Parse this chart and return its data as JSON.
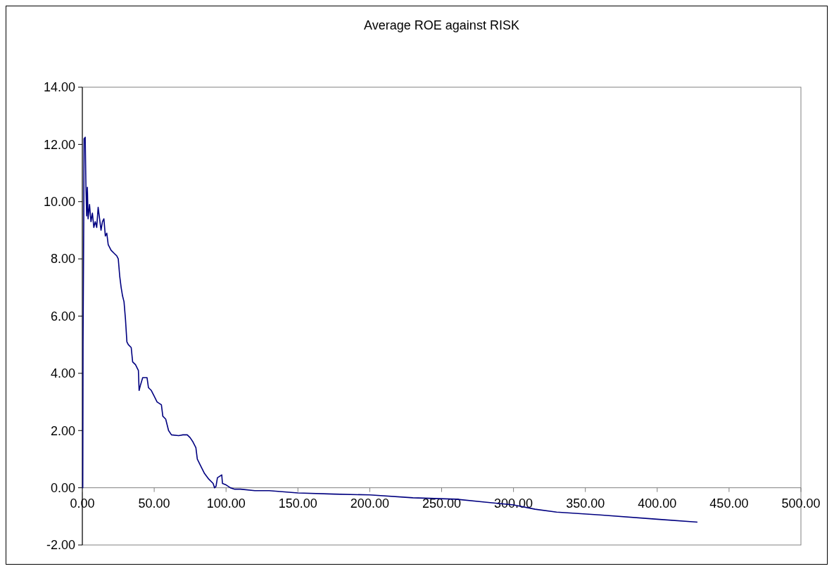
{
  "chart_data": {
    "type": "line",
    "title": "Average ROE against RISK",
    "xlim": [
      0,
      500
    ],
    "xticks": [
      {
        "value": 0,
        "label": "0.00"
      },
      {
        "value": 50,
        "label": "50.00"
      },
      {
        "value": 100,
        "label": "100.00"
      },
      {
        "value": 150,
        "label": "150.00"
      },
      {
        "value": 200,
        "label": "200.00"
      },
      {
        "value": 250,
        "label": "250.00"
      },
      {
        "value": 300,
        "label": "300.00"
      },
      {
        "value": 350,
        "label": "350.00"
      },
      {
        "value": 400,
        "label": "400.00"
      },
      {
        "value": 450,
        "label": "450.00"
      },
      {
        "value": 500,
        "label": "500.00"
      }
    ],
    "ylim": [
      -2,
      14
    ],
    "yticks": [
      {
        "value": -2,
        "label": "-2.00"
      },
      {
        "value": 0,
        "label": "0.00"
      },
      {
        "value": 2,
        "label": "2.00"
      },
      {
        "value": 4,
        "label": "4.00"
      },
      {
        "value": 6,
        "label": "6.00"
      },
      {
        "value": 8,
        "label": "8.00"
      },
      {
        "value": 10,
        "label": "10.00"
      },
      {
        "value": 12,
        "label": "12.00"
      },
      {
        "value": 14,
        "label": "14.00"
      }
    ],
    "grid": false,
    "marker": "none",
    "line_style": "solid",
    "series": [
      {
        "color": "#000080",
        "x": [
          0,
          0.3,
          0.5,
          1,
          1.2,
          2,
          2.5,
          3,
          3.5,
          4,
          5,
          6,
          7,
          8,
          9,
          10,
          11,
          12,
          13,
          14,
          15,
          16,
          17,
          18,
          20,
          22,
          24,
          25,
          26,
          27,
          28,
          29,
          30,
          31,
          32,
          34,
          35,
          37,
          39,
          39.5,
          40.5,
          42,
          45,
          46,
          48,
          50,
          52,
          55,
          56,
          58,
          60,
          62,
          67,
          70,
          73,
          75,
          77,
          79,
          80,
          82,
          85,
          88,
          91,
          92,
          93,
          94,
          97,
          97.5,
          100,
          103,
          106,
          110,
          120,
          130,
          150,
          175,
          200,
          230,
          260,
          280,
          300,
          315,
          330,
          360,
          400,
          428
        ],
        "values": [
          0,
          0,
          5,
          9.5,
          12.2,
          12.25,
          10.5,
          9.5,
          10.5,
          9.4,
          9.9,
          9.3,
          9.6,
          9.1,
          9.3,
          9.1,
          9.8,
          9.4,
          9,
          9.3,
          9.4,
          8.8,
          8.9,
          8.5,
          8.3,
          8.2,
          8.1,
          8,
          7.4,
          7,
          6.7,
          6.5,
          5.9,
          5.1,
          5,
          4.9,
          4.4,
          4.3,
          4.1,
          3.4,
          3.6,
          3.85,
          3.85,
          3.5,
          3.4,
          3.2,
          3,
          2.9,
          2.5,
          2.4,
          2,
          1.85,
          1.82,
          1.85,
          1.85,
          1.75,
          1.6,
          1.4,
          1,
          0.8,
          0.5,
          0.3,
          0.15,
          0,
          0.05,
          0.35,
          0.45,
          0.15,
          0.1,
          0,
          -0.05,
          -0.05,
          -0.1,
          -0.1,
          -0.18,
          -0.22,
          -0.25,
          -0.35,
          -0.4,
          -0.5,
          -0.6,
          -0.75,
          -0.85,
          -0.95,
          -1.1,
          -1.2
        ]
      }
    ]
  }
}
